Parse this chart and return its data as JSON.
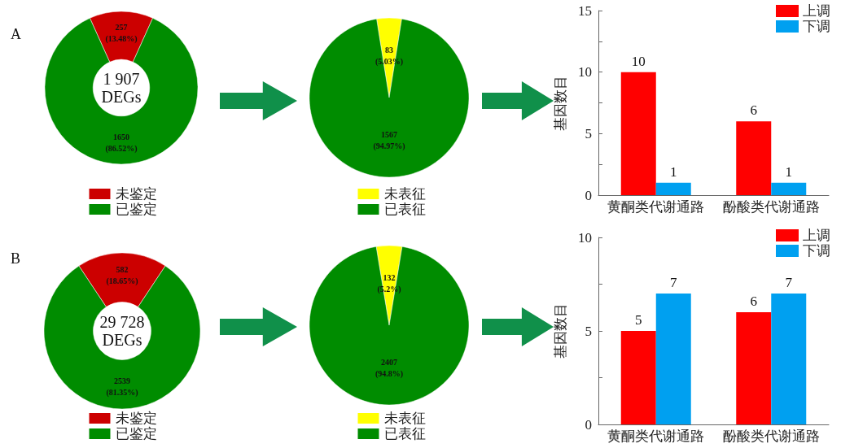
{
  "chart_data": [
    {
      "type": "donut",
      "title": "A",
      "annotations": [
        "1 907\nDEGs"
      ],
      "categories": [
        "未鉴定",
        "已鉴定"
      ],
      "values": [
        257,
        1650
      ],
      "colors": [
        "#cc0000",
        "#008c00"
      ],
      "value_labels": [
        "257\n(13.48%)",
        "1650\n(86.52%)"
      ],
      "legend": "bottom"
    },
    {
      "type": "pie",
      "categories": [
        "未表征",
        "已表征"
      ],
      "values": [
        83,
        1567
      ],
      "colors": [
        "#ffff00",
        "#008c00"
      ],
      "value_labels": [
        "83\n(5.03%)",
        "1567\n(94.97%)"
      ],
      "legend": "bottom"
    },
    {
      "type": "bar",
      "ylabel": "基因数目",
      "categories": [
        "黄酮类代谢通路",
        "酚酸类代谢通路"
      ],
      "series": [
        {
          "name": "上调",
          "color": "#ff0000",
          "values": [
            10,
            6
          ]
        },
        {
          "name": "下调",
          "color": "#00a0f0",
          "values": [
            1,
            1
          ]
        }
      ],
      "ylim": [
        0,
        15
      ],
      "yticks": [
        0,
        {
          "value": 2.5,
          "label": null
        },
        5,
        {
          "value": 7.5,
          "label": null
        },
        10,
        {
          "value": 12.5,
          "label": null
        },
        15
      ],
      "data_labels": true,
      "legend": "top right"
    },
    {
      "type": "donut",
      "title": "B",
      "annotations": [
        "29 728\nDEGs"
      ],
      "categories": [
        "未鉴定",
        "已鉴定"
      ],
      "values": [
        582,
        2539
      ],
      "colors": [
        "#cc0000",
        "#008c00"
      ],
      "value_labels": [
        "582\n(18.65%)",
        "2539\n(81.35%)"
      ],
      "legend": "bottom"
    },
    {
      "type": "pie",
      "categories": [
        "未表征",
        "已表征"
      ],
      "values": [
        132,
        2407
      ],
      "colors": [
        "#ffff00",
        "#008c00"
      ],
      "value_labels": [
        "132\n(5.2%)",
        "2407\n(94.8%)"
      ],
      "legend": "bottom"
    },
    {
      "type": "bar",
      "ylabel": "基因数目",
      "categories": [
        "黄酮类代谢通路",
        "酚酸类代谢通路"
      ],
      "series": [
        {
          "name": "上调",
          "color": "#ff0000",
          "values": [
            5,
            6
          ]
        },
        {
          "name": "下调",
          "color": "#00a0f0",
          "values": [
            7,
            7
          ]
        }
      ],
      "ylim": [
        0,
        10
      ],
      "yticks": [
        0,
        {
          "value": 2.5,
          "label": null
        },
        5,
        {
          "value": 7.5,
          "label": null
        },
        10
      ],
      "data_labels": true,
      "legend": "top right"
    }
  ]
}
